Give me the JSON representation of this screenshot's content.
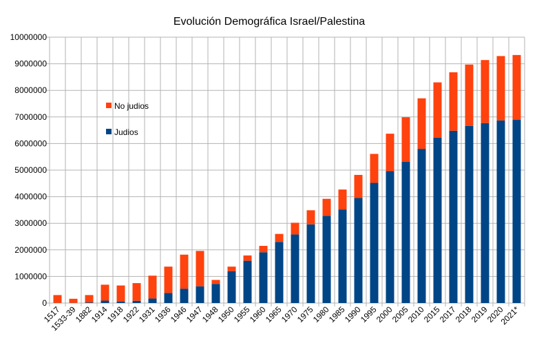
{
  "chart_data": {
    "type": "bar",
    "stacked": true,
    "title": "Evolución Demográfica Israel/Palestina",
    "xlabel": "",
    "ylabel": "",
    "ylim": [
      0,
      10000000
    ],
    "yticks": [
      0,
      1000000,
      2000000,
      3000000,
      4000000,
      5000000,
      6000000,
      7000000,
      8000000,
      9000000,
      10000000
    ],
    "grid": true,
    "legend_position": "left-inside",
    "categories": [
      "1517",
      "1533-39",
      "1882",
      "1914",
      "1918",
      "1922",
      "1931",
      "1936",
      "1946",
      "1947",
      "1948",
      "1950",
      "1955",
      "1960",
      "1965",
      "1970",
      "1975",
      "1980",
      "1985",
      "1990",
      "1995",
      "2000",
      "2005",
      "2010",
      "2015",
      "2017",
      "2018",
      "2019",
      "2020",
      "2021*"
    ],
    "series": [
      {
        "name": "Judios",
        "color": "#004586",
        "values": [
          5000,
          6000,
          24000,
          90000,
          60000,
          84000,
          170000,
          380000,
          540000,
          630000,
          720000,
          1200000,
          1590000,
          1910000,
          2300000,
          2580000,
          2960000,
          3280000,
          3520000,
          3950000,
          4520000,
          4960000,
          5310000,
          5800000,
          6220000,
          6480000,
          6660000,
          6770000,
          6870000,
          6890000
        ]
      },
      {
        "name": "No judios",
        "color": "#ff420e",
        "values": [
          295000,
          154000,
          276000,
          600000,
          600000,
          666000,
          860000,
          990000,
          1280000,
          1330000,
          150000,
          170000,
          200000,
          240000,
          300000,
          440000,
          530000,
          640000,
          750000,
          870000,
          1090000,
          1410000,
          1680000,
          1900000,
          2080000,
          2200000,
          2310000,
          2370000,
          2420000,
          2440000
        ]
      }
    ]
  }
}
